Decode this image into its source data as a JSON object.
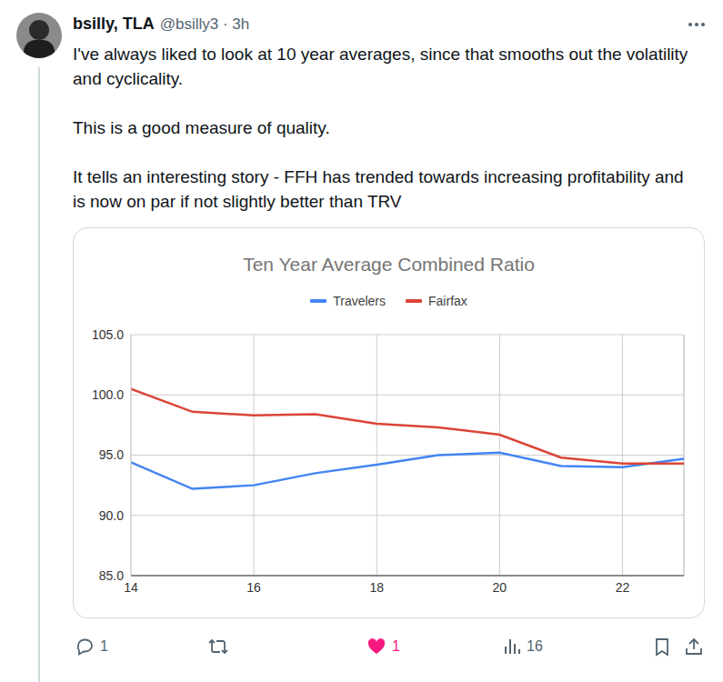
{
  "tweet": {
    "name": "bsilly, TLA",
    "meta": "@bsilly3 · 3h",
    "paragraphs": [
      "I've always liked to look at 10 year averages, since that smooths out the volatility and cyclicality.",
      "This is a good measure of quality.",
      "It tells an interesting story - FFH  has trended towards increasing profitability and is now on par if not slightly better than TRV"
    ],
    "replies": 1,
    "likes": 1,
    "views": 16
  },
  "chart_data": {
    "type": "line",
    "title": "Ten Year Average Combined Ratio",
    "x": [
      14,
      15,
      16,
      17,
      18,
      19,
      20,
      21,
      22,
      23
    ],
    "xlim": [
      14,
      23
    ],
    "xticks": [
      14,
      16,
      18,
      20,
      22
    ],
    "ylim": [
      85,
      105
    ],
    "yticks": [
      {
        "value": 85,
        "label": "85.0"
      },
      {
        "value": 90,
        "label": "90.0"
      },
      {
        "value": 95,
        "label": "95.0"
      },
      {
        "value": 100,
        "label": "100.0"
      },
      {
        "value": 105,
        "label": "105.0"
      }
    ],
    "grid": true,
    "legend": "top",
    "series": [
      {
        "name": "Travelers",
        "color": "#4285f4",
        "values": [
          94.4,
          92.2,
          92.5,
          93.5,
          94.2,
          95.0,
          95.2,
          94.1,
          94.0,
          94.7
        ]
      },
      {
        "name": "Fairfax",
        "color": "#db4437",
        "values": [
          100.5,
          98.6,
          98.3,
          98.4,
          97.6,
          97.3,
          96.7,
          94.8,
          94.3,
          94.3
        ]
      }
    ]
  }
}
